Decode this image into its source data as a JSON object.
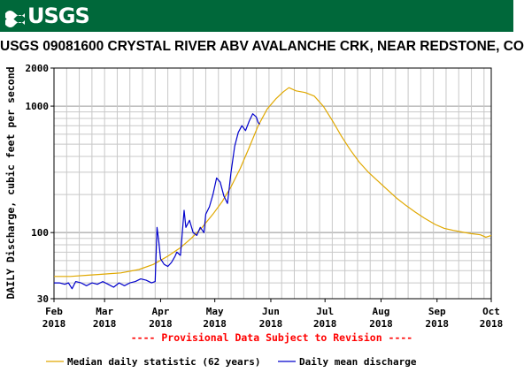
{
  "header": {
    "logo_text": "USGS",
    "title": "USGS 09081600 CRYSTAL RIVER ABV AVALANCHE CRK, NEAR REDSTONE, CO",
    "banner_color": "#00683a"
  },
  "chart_data": {
    "type": "line",
    "ylabel": "DAILY Discharge, cubic feet per second",
    "yscale": "log",
    "ylim": [
      30,
      2000
    ],
    "yticks": [
      30,
      100,
      1000,
      2000
    ],
    "ytick_labels": [
      "30",
      "100",
      "1000",
      "2000"
    ],
    "xlim": [
      "2018-02-01",
      "2018-10-01"
    ],
    "xticks": [
      {
        "month": "Feb",
        "year": "2018",
        "date": "2018-02-01"
      },
      {
        "month": "Mar",
        "year": "2018",
        "date": "2018-03-01"
      },
      {
        "month": "Apr",
        "year": "2018",
        "date": "2018-04-01"
      },
      {
        "month": "May",
        "year": "2018",
        "date": "2018-05-01"
      },
      {
        "month": "Jun",
        "year": "2018",
        "date": "2018-06-01"
      },
      {
        "month": "Jul",
        "year": "2018",
        "date": "2018-07-01"
      },
      {
        "month": "Aug",
        "year": "2018",
        "date": "2018-08-01"
      },
      {
        "month": "Sep",
        "year": "2018",
        "date": "2018-09-01"
      },
      {
        "month": "Oct",
        "year": "2018",
        "date": "2018-10-01"
      }
    ],
    "grid": true,
    "annotation": "---- Provisional Data Subject to Revision ----",
    "annotation_color": "#ff0000",
    "legend_position": "bottom",
    "series": [
      {
        "name": "Median daily statistic (62 years)",
        "color": "#e0a800",
        "points": [
          [
            "2018-02-01",
            45
          ],
          [
            "2018-02-10",
            45
          ],
          [
            "2018-02-20",
            46
          ],
          [
            "2018-03-01",
            47
          ],
          [
            "2018-03-10",
            48
          ],
          [
            "2018-03-20",
            51
          ],
          [
            "2018-03-28",
            56
          ],
          [
            "2018-04-05",
            65
          ],
          [
            "2018-04-12",
            76
          ],
          [
            "2018-04-18",
            90
          ],
          [
            "2018-04-24",
            110
          ],
          [
            "2018-04-30",
            140
          ],
          [
            "2018-05-05",
            175
          ],
          [
            "2018-05-10",
            230
          ],
          [
            "2018-05-15",
            320
          ],
          [
            "2018-05-20",
            470
          ],
          [
            "2018-05-25",
            700
          ],
          [
            "2018-05-30",
            950
          ],
          [
            "2018-06-04",
            1150
          ],
          [
            "2018-06-08",
            1300
          ],
          [
            "2018-06-11",
            1400
          ],
          [
            "2018-06-15",
            1320
          ],
          [
            "2018-06-20",
            1280
          ],
          [
            "2018-06-25",
            1200
          ],
          [
            "2018-06-30",
            1000
          ],
          [
            "2018-07-05",
            770
          ],
          [
            "2018-07-10",
            580
          ],
          [
            "2018-07-15",
            450
          ],
          [
            "2018-07-20",
            360
          ],
          [
            "2018-07-25",
            300
          ],
          [
            "2018-07-31",
            250
          ],
          [
            "2018-08-05",
            215
          ],
          [
            "2018-08-10",
            185
          ],
          [
            "2018-08-15",
            163
          ],
          [
            "2018-08-20",
            145
          ],
          [
            "2018-08-25",
            130
          ],
          [
            "2018-08-31",
            116
          ],
          [
            "2018-09-05",
            108
          ],
          [
            "2018-09-10",
            104
          ],
          [
            "2018-09-15",
            101
          ],
          [
            "2018-09-20",
            98
          ],
          [
            "2018-09-25",
            96
          ],
          [
            "2018-09-28",
            92
          ],
          [
            "2018-10-01",
            95
          ]
        ]
      },
      {
        "name": "Daily mean discharge",
        "color": "#0000cc",
        "points": [
          [
            "2018-02-01",
            40
          ],
          [
            "2018-02-04",
            40
          ],
          [
            "2018-02-07",
            39
          ],
          [
            "2018-02-09",
            40
          ],
          [
            "2018-02-11",
            36
          ],
          [
            "2018-02-13",
            41
          ],
          [
            "2018-02-16",
            40
          ],
          [
            "2018-02-19",
            38
          ],
          [
            "2018-02-22",
            40
          ],
          [
            "2018-02-25",
            39
          ],
          [
            "2018-02-28",
            41
          ],
          [
            "2018-03-03",
            39
          ],
          [
            "2018-03-06",
            37
          ],
          [
            "2018-03-09",
            40
          ],
          [
            "2018-03-12",
            38
          ],
          [
            "2018-03-15",
            40
          ],
          [
            "2018-03-18",
            41
          ],
          [
            "2018-03-21",
            43
          ],
          [
            "2018-03-24",
            42
          ],
          [
            "2018-03-27",
            40
          ],
          [
            "2018-03-29",
            41
          ],
          [
            "2018-03-30",
            110
          ],
          [
            "2018-03-31",
            85
          ],
          [
            "2018-04-01",
            62
          ],
          [
            "2018-04-03",
            56
          ],
          [
            "2018-04-05",
            54
          ],
          [
            "2018-04-07",
            58
          ],
          [
            "2018-04-09",
            65
          ],
          [
            "2018-04-10",
            70
          ],
          [
            "2018-04-12",
            66
          ],
          [
            "2018-04-14",
            150
          ],
          [
            "2018-04-15",
            110
          ],
          [
            "2018-04-17",
            125
          ],
          [
            "2018-04-19",
            100
          ],
          [
            "2018-04-21",
            95
          ],
          [
            "2018-04-23",
            110
          ],
          [
            "2018-04-25",
            100
          ],
          [
            "2018-04-26",
            140
          ],
          [
            "2018-04-28",
            160
          ],
          [
            "2018-04-30",
            200
          ],
          [
            "2018-05-02",
            270
          ],
          [
            "2018-05-04",
            250
          ],
          [
            "2018-05-06",
            195
          ],
          [
            "2018-05-08",
            170
          ],
          [
            "2018-05-10",
            300
          ],
          [
            "2018-05-12",
            480
          ],
          [
            "2018-05-14",
            620
          ],
          [
            "2018-05-16",
            700
          ],
          [
            "2018-05-18",
            640
          ],
          [
            "2018-05-20",
            760
          ],
          [
            "2018-05-22",
            870
          ],
          [
            "2018-05-24",
            820
          ],
          [
            "2018-05-25",
            740
          ],
          [
            "2018-05-26",
            720
          ]
        ]
      }
    ]
  }
}
